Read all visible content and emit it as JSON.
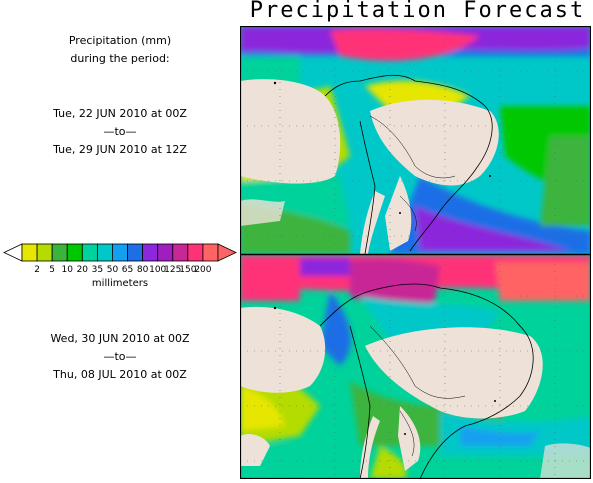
{
  "title": "Precipitation Forecast",
  "label": {
    "line1": "Precipitation (mm)",
    "line2": "during the period:"
  },
  "period1": {
    "start": "Tue, 22 JUN 2010 at 00Z",
    "sep": "—to—",
    "end": "Tue, 29 JUN 2010 at 12Z"
  },
  "period2": {
    "start": "Wed, 30 JUN 2010 at 00Z",
    "sep": "—to—",
    "end": "Thu, 08 JUL 2010 at 00Z"
  },
  "legend": {
    "units": "millimeters",
    "ticks": [
      "2",
      "5",
      "10",
      "20",
      "35",
      "50",
      "65",
      "80",
      "100",
      "125",
      "150",
      "200"
    ],
    "colors": [
      "#e6e600",
      "#b4dc00",
      "#3cb43c",
      "#00c800",
      "#00d29b",
      "#00c8c8",
      "#14a0f0",
      "#1e6ee6",
      "#8c28dc",
      "#a01ebe",
      "#c82896",
      "#ff3278",
      "#ff6464"
    ]
  },
  "colors": {
    "land": "#eee2d8",
    "map_border": "#000000"
  }
}
